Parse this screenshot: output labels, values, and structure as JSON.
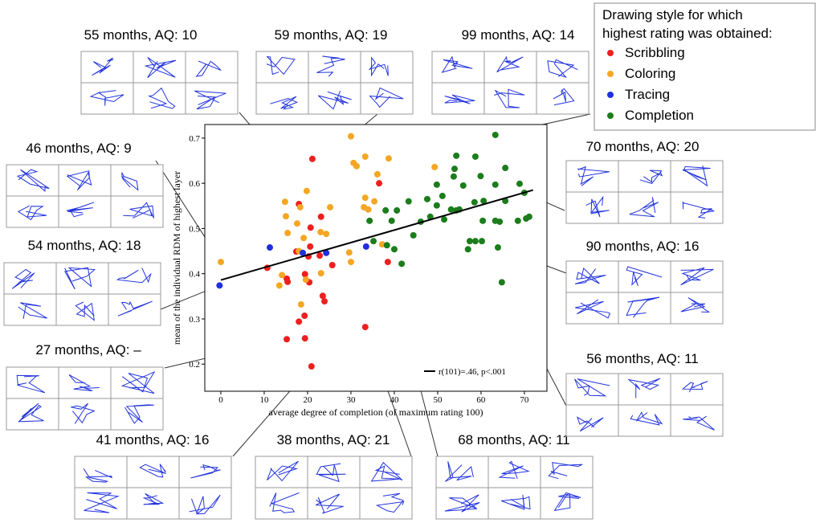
{
  "chart_data": {
    "type": "scatter",
    "x_label": "average degree of completion (of maximum rating 100)",
    "y_label": "mean of the individual RDM of highest layer",
    "xlim": [
      -3.7,
      75.2
    ],
    "ylim": [
      0.14,
      0.73
    ],
    "xticks": [
      0,
      10,
      20,
      30,
      40,
      50,
      60,
      70
    ],
    "yticks": [
      0.2,
      0.3,
      0.4,
      0.5,
      0.6,
      0.7
    ],
    "legend_title": "Drawing style for which highest rating was obtained:",
    "legend_position": "upper right",
    "series": [
      {
        "name": "Scribbling",
        "color": "#ee1f1f",
        "x": [
          21.1,
          36.5,
          18,
          23.1,
          20.7,
          17.4,
          20.6,
          20.2,
          19.4,
          20.4,
          10.7,
          15.2,
          15.4,
          22.8,
          23.5,
          23.9,
          18,
          19.3,
          19.4,
          15.2,
          20.9,
          33.3,
          38.5,
          25.7
        ],
        "y": [
          0.654,
          0.6,
          0.554,
          0.526,
          0.502,
          0.449,
          0.46,
          0.438,
          0.399,
          0.381,
          0.413,
          0.389,
          0.382,
          0.44,
          0.351,
          0.339,
          0.294,
          0.307,
          0.257,
          0.255,
          0.195,
          0.282,
          0.426,
          0.419
        ]
      },
      {
        "name": "Coloring",
        "color": "#f5a623",
        "x": [
          0,
          30,
          19.8,
          14.8,
          15,
          18.3,
          17.6,
          15.4,
          19.1,
          23,
          24.3,
          25.2,
          30.6,
          31.3,
          33.3,
          38.7,
          36.1,
          33.3,
          34,
          35.4,
          33,
          29.6,
          30,
          18,
          19.6,
          18.5,
          13.5,
          14.1,
          37.2,
          49.3,
          23.1
        ],
        "y": [
          0.426,
          0.704,
          0.583,
          0.559,
          0.527,
          0.547,
          0.511,
          0.49,
          0.479,
          0.492,
          0.488,
          0.547,
          0.645,
          0.638,
          0.659,
          0.655,
          0.62,
          0.568,
          0.542,
          0.56,
          0.547,
          0.447,
          0.426,
          0.45,
          0.387,
          0.332,
          0.374,
          0.397,
          0.465,
          0.636,
          0.401
        ]
      },
      {
        "name": "Tracing",
        "color": "#1f2fe0",
        "x": [
          -0.3,
          11.3,
          18.9,
          24.3,
          33.5
        ],
        "y": [
          0.374,
          0.458,
          0.446,
          0.446,
          0.46
        ]
      },
      {
        "name": "Completion",
        "color": "#1b7d1b",
        "x": [
          63.3,
          54.3,
          53.9,
          58.7,
          53.7,
          65.6,
          59.9,
          63.3,
          68.9,
          70,
          49.8,
          55.9,
          51.1,
          47.6,
          43.3,
          49.8,
          53.1,
          54.3,
          55,
          58.5,
          60.6,
          65.6,
          38,
          40.6,
          39.4,
          34.3,
          46.1,
          48.3,
          51.5,
          60.4,
          63.3,
          64.3,
          68.5,
          70.4,
          71.1,
          44.4,
          40,
          41.7,
          38.3,
          35.2,
          57.4,
          58.7,
          60.2,
          57,
          63.9,
          64.8
        ],
        "y": [
          0.707,
          0.661,
          0.632,
          0.659,
          0.615,
          0.634,
          0.616,
          0.597,
          0.599,
          0.579,
          0.597,
          0.595,
          0.572,
          0.565,
          0.56,
          0.551,
          0.542,
          0.54,
          0.542,
          0.558,
          0.561,
          0.561,
          0.54,
          0.54,
          0.517,
          0.517,
          0.515,
          0.526,
          0.52,
          0.517,
          0.517,
          0.515,
          0.517,
          0.522,
          0.526,
          0.485,
          0.454,
          0.422,
          0.463,
          0.472,
          0.472,
          0.472,
          0.472,
          0.454,
          0.458,
          0.381
        ]
      }
    ],
    "fit": {
      "name": "r(101)=.46, p<.001",
      "color": "#000000",
      "x": [
        0,
        72
      ],
      "y": [
        0.386,
        0.585
      ]
    },
    "annotations": [
      "55 months, AQ: 10",
      "59 months, AQ: 19",
      "99 months, AQ: 14",
      "46 months, AQ: 9",
      "54 months, AQ: 18",
      "27 months, AQ: –",
      "41 months, AQ: 16",
      "38 months, AQ: 21",
      "68 months, AQ: 11",
      "70 months, AQ: 20",
      "90 months, AQ: 16",
      "56 months, AQ: 11"
    ]
  }
}
